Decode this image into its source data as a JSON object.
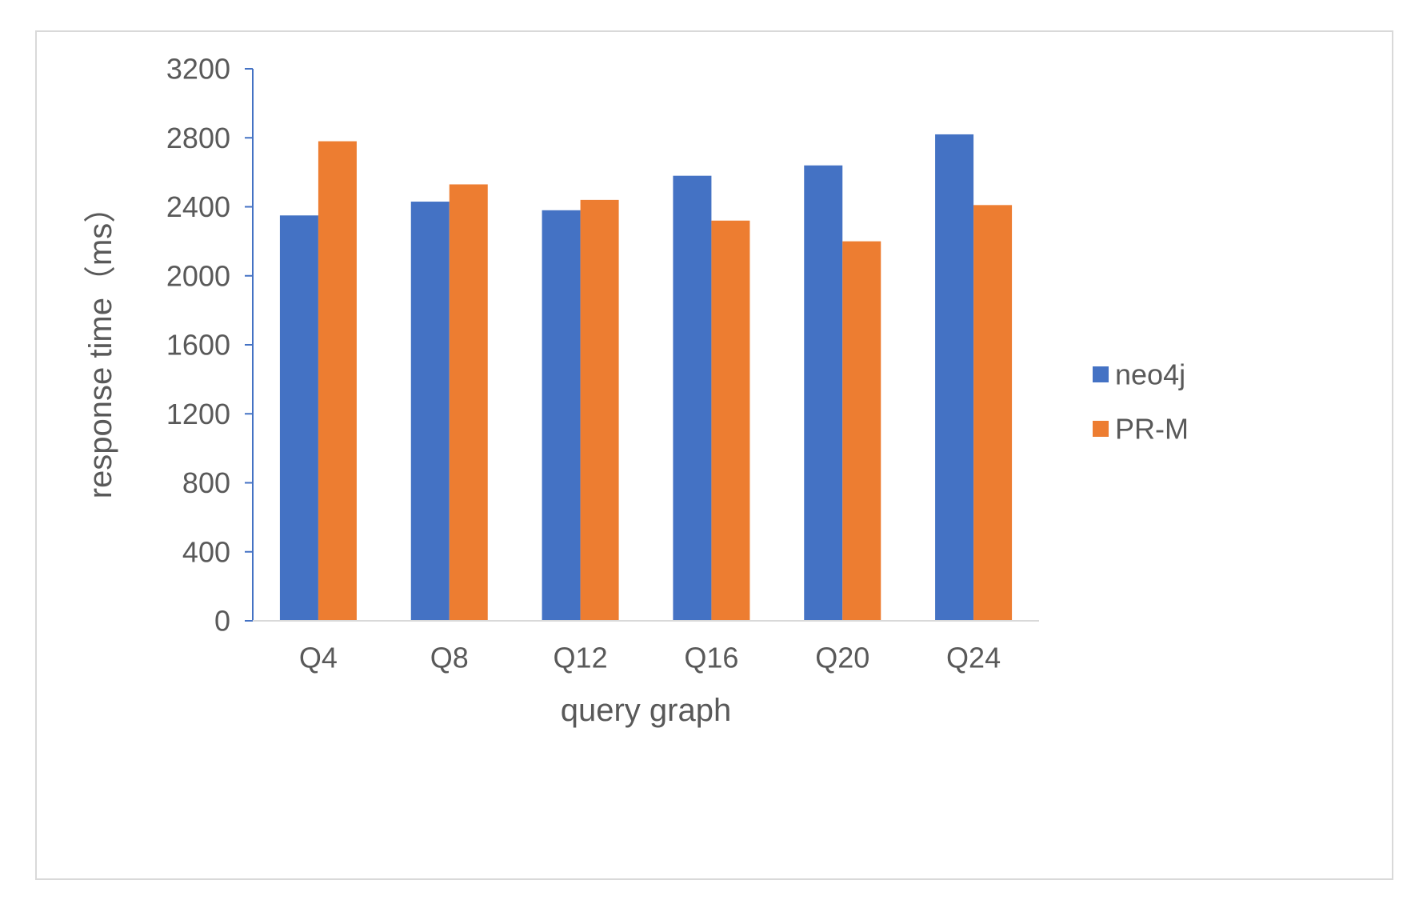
{
  "chart_data": {
    "type": "bar",
    "title": "",
    "xlabel": "query graph",
    "ylabel": "response time（ms）",
    "categories": [
      "Q4",
      "Q8",
      "Q12",
      "Q16",
      "Q20",
      "Q24"
    ],
    "series": [
      {
        "name": "neo4j",
        "color": "#4472c4",
        "values": [
          2350,
          2430,
          2380,
          2580,
          2640,
          2820
        ]
      },
      {
        "name": "PR-M",
        "color": "#ed7d31",
        "values": [
          2780,
          2530,
          2440,
          2320,
          2200,
          2410
        ]
      }
    ],
    "ylim": [
      0,
      3200
    ],
    "yticks": [
      0,
      400,
      800,
      1200,
      1600,
      2000,
      2400,
      2800,
      3200
    ],
    "grid": false,
    "legend_position": "right",
    "axis_color": "#4472c4",
    "baseline_color": "#d9d9d9"
  }
}
